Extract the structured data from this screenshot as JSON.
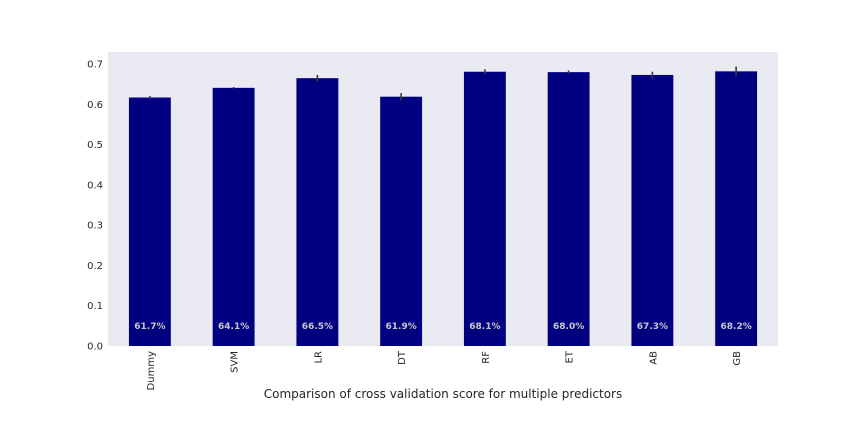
{
  "chart_data": {
    "type": "bar",
    "categories": [
      "Dummy",
      "SVM",
      "LR",
      "DT",
      "RF",
      "ET",
      "AB",
      "GB"
    ],
    "values": [
      0.617,
      0.641,
      0.665,
      0.619,
      0.681,
      0.68,
      0.673,
      0.682
    ],
    "errors": [
      0.004,
      0.002,
      0.008,
      0.009,
      0.006,
      0.004,
      0.008,
      0.012
    ],
    "bar_labels": [
      "61.7%",
      "64.1%",
      "66.5%",
      "61.9%",
      "68.1%",
      "68.0%",
      "67.3%",
      "68.2%"
    ],
    "title": "",
    "xlabel": "Comparison of cross validation score for multiple predictors",
    "ylabel": "",
    "ylim": [
      0,
      0.73
    ],
    "yticks": [
      "0.0",
      "0.1",
      "0.2",
      "0.3",
      "0.4",
      "0.5",
      "0.6",
      "0.7"
    ],
    "grid": false,
    "legend": "none",
    "colors": {
      "bar": "#000080",
      "plot_background": "#eaeaf2",
      "error_bar": "#3c3c3c",
      "bar_label": "#c8c8c8"
    }
  }
}
